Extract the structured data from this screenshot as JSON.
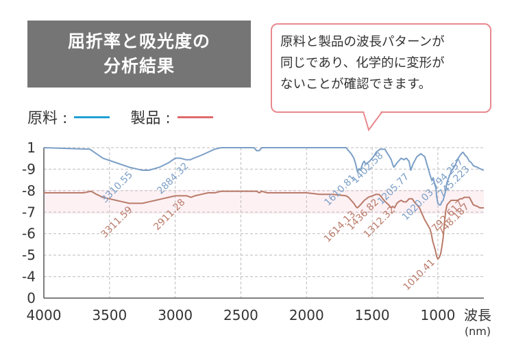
{
  "title": {
    "line1": "屈折率と吸光度の",
    "line2": "分析結果"
  },
  "callout": {
    "line1": "原料と製品の波長パターンが",
    "line2": "同じであり、化学的に変形が",
    "line3": "ないことが確認できます。"
  },
  "legend": {
    "raw_label": "原料 :",
    "product_label": "製品 :"
  },
  "colors": {
    "raw": "#1fa0d2",
    "product": "#e06a6a",
    "raw_line": "#7a9ec6",
    "product_line": "#b97a68"
  },
  "chart_data": {
    "type": "line",
    "xlabel": "波長",
    "xunit": "(nm)",
    "xlim": [
      4000,
      650
    ],
    "x_ticks": [
      4000,
      3500,
      3000,
      2500,
      2000,
      1500,
      1000
    ],
    "y_tick_labels": [
      "1",
      "-9",
      "-8",
      "-7",
      "-6",
      "-5",
      "-4",
      "0"
    ],
    "grid": true,
    "series": [
      {
        "name": "原料",
        "x": [
          4000,
          3650,
          3550,
          3450,
          3350,
          3300,
          3250,
          3200,
          3120,
          3050,
          3000,
          2960,
          2920,
          2884,
          2860,
          2800,
          2750,
          2700,
          2650,
          2400,
          2380,
          2360,
          2340,
          2000,
          1900,
          1700,
          1680,
          1660,
          1640,
          1625,
          1612,
          1600,
          1590,
          1570,
          1560,
          1550,
          1520,
          1490,
          1470,
          1440,
          1420,
          1403,
          1390,
          1375,
          1355,
          1345,
          1335,
          1310,
          1280,
          1260,
          1240,
          1220,
          1206,
          1190,
          1160,
          1130,
          1100,
          1080,
          1060,
          1045,
          1035,
          1025,
          1015,
          1010,
          1000,
          990,
          980,
          970,
          960,
          945,
          930,
          900,
          870,
          845,
          830,
          820,
          810,
          800,
          794,
          780,
          760,
          745,
          730,
          700,
          680,
          650
        ],
        "values": [
          1.0,
          0.99,
          0.93,
          0.9,
          0.87,
          0.86,
          0.85,
          0.85,
          0.87,
          0.9,
          0.93,
          0.93,
          0.92,
          0.92,
          0.93,
          0.95,
          0.97,
          0.99,
          1.0,
          1.0,
          0.98,
          0.98,
          1.0,
          1.0,
          1.0,
          1.0,
          0.98,
          0.96,
          0.93,
          0.89,
          0.84,
          0.86,
          0.85,
          0.9,
          0.91,
          0.89,
          0.91,
          0.94,
          0.97,
          0.99,
          0.99,
          0.99,
          0.97,
          0.95,
          0.92,
          0.89,
          0.87,
          0.9,
          0.93,
          0.92,
          0.93,
          0.91,
          0.85,
          0.89,
          0.94,
          0.96,
          0.94,
          0.88,
          0.82,
          0.78,
          0.8,
          0.76,
          0.73,
          0.68,
          0.63,
          0.62,
          0.62,
          0.64,
          0.65,
          0.7,
          0.77,
          0.84,
          0.88,
          0.93,
          0.95,
          0.96,
          0.97,
          0.96,
          0.95,
          0.94,
          0.91,
          0.9,
          0.88,
          0.87,
          0.86,
          0.85
        ]
      },
      {
        "name": "製品",
        "x": [
          4000,
          3700,
          3640,
          3600,
          3550,
          3500,
          3450,
          3400,
          3350,
          3300,
          3250,
          3200,
          3150,
          3100,
          3050,
          3000,
          2950,
          2911,
          2880,
          2850,
          2800,
          2750,
          2700,
          2650,
          2600,
          2550,
          2500,
          2450,
          2400,
          2380,
          2360,
          2340,
          2300,
          2000,
          1900,
          1800,
          1700,
          1680,
          1660,
          1640,
          1625,
          1614,
          1600,
          1590,
          1570,
          1560,
          1530,
          1500,
          1470,
          1450,
          1437,
          1420,
          1400,
          1375,
          1355,
          1345,
          1330,
          1312,
          1300,
          1280,
          1260,
          1240,
          1220,
          1210,
          1195,
          1180,
          1160,
          1140,
          1120,
          1100,
          1080,
          1060,
          1050,
          1040,
          1030,
          1020,
          1010,
          1000,
          990,
          980,
          970,
          960,
          950,
          940,
          930,
          900,
          870,
          850,
          830,
          815,
          800,
          793,
          780,
          760,
          748,
          730,
          700,
          680,
          650
        ],
        "values": [
          0.7,
          0.7,
          0.71,
          0.69,
          0.67,
          0.66,
          0.65,
          0.64,
          0.63,
          0.63,
          0.63,
          0.64,
          0.65,
          0.66,
          0.67,
          0.68,
          0.68,
          0.68,
          0.67,
          0.68,
          0.69,
          0.7,
          0.7,
          0.71,
          0.71,
          0.71,
          0.71,
          0.71,
          0.71,
          0.71,
          0.7,
          0.71,
          0.7,
          0.7,
          0.69,
          0.69,
          0.68,
          0.67,
          0.65,
          0.63,
          0.61,
          0.6,
          0.61,
          0.62,
          0.64,
          0.65,
          0.67,
          0.68,
          0.69,
          0.69,
          0.68,
          0.66,
          0.64,
          0.62,
          0.6,
          0.61,
          0.6,
          0.63,
          0.64,
          0.65,
          0.64,
          0.64,
          0.66,
          0.66,
          0.66,
          0.64,
          0.62,
          0.6,
          0.56,
          0.52,
          0.49,
          0.46,
          0.43,
          0.38,
          0.35,
          0.32,
          0.28,
          0.26,
          0.27,
          0.29,
          0.34,
          0.4,
          0.5,
          0.58,
          0.62,
          0.65,
          0.65,
          0.65,
          0.66,
          0.66,
          0.67,
          0.67,
          0.67,
          0.67,
          0.65,
          0.62,
          0.61,
          0.6,
          0.6
        ]
      }
    ],
    "annotations": [
      {
        "series": "原料",
        "text": "3310.55",
        "x": 3310
      },
      {
        "series": "原料",
        "text": "2884.32",
        "x": 2884
      },
      {
        "series": "原料",
        "text": "1610.81",
        "x": 1611
      },
      {
        "series": "原料",
        "text": "1402.58",
        "x": 1403
      },
      {
        "series": "原料",
        "text": "1205.77",
        "x": 1206
      },
      {
        "series": "原料",
        "text": "1020.03",
        "x": 1020
      },
      {
        "series": "原料",
        "text": "794.257",
        "x": 794
      },
      {
        "series": "原料",
        "text": "745.223",
        "x": 745
      },
      {
        "series": "製品",
        "text": "3311.59",
        "x": 3312
      },
      {
        "series": "製品",
        "text": "2911.28",
        "x": 2911
      },
      {
        "series": "製品",
        "text": "1614.13",
        "x": 1614
      },
      {
        "series": "製品",
        "text": "1436.82",
        "x": 1437
      },
      {
        "series": "製品",
        "text": "1312.32",
        "x": 1312
      },
      {
        "series": "製品",
        "text": "1010.41",
        "x": 1010
      },
      {
        "series": "製品",
        "text": "792.617",
        "x": 793
      },
      {
        "series": "製品",
        "text": "748.187",
        "x": 748
      }
    ]
  }
}
